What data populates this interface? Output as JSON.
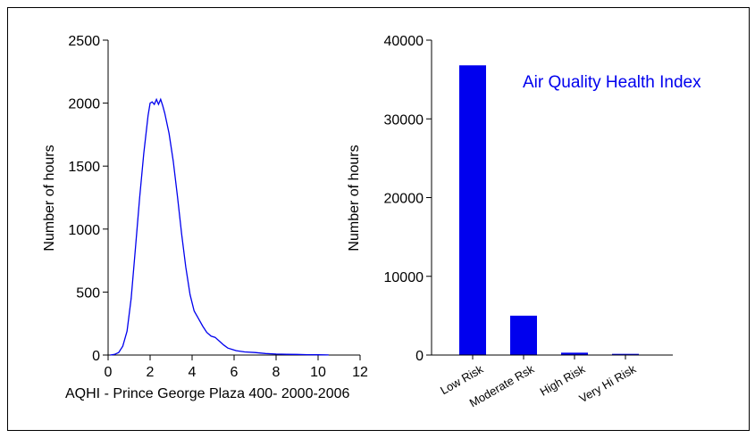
{
  "annotation": "Air Quality Health Index",
  "colors": {
    "series": "#0000ee",
    "axis": "#000000",
    "border": "#000000"
  },
  "chart_data": [
    {
      "type": "line",
      "title": "",
      "xlabel": "AQHI - Prince George Plaza 400- 2000-2006",
      "ylabel": "Number of hours",
      "xlim": [
        0,
        12
      ],
      "ylim": [
        0,
        2500
      ],
      "xticks": [
        0,
        2,
        4,
        6,
        8,
        10,
        12
      ],
      "yticks": [
        0,
        500,
        1000,
        1500,
        2000,
        2500
      ],
      "grid": false,
      "series": [
        {
          "x": [
            0.1,
            0.3,
            0.5,
            0.7,
            0.9,
            1.1,
            1.3,
            1.5,
            1.7,
            1.9,
            2.0,
            2.1,
            2.2,
            2.3,
            2.4,
            2.5,
            2.6,
            2.7,
            2.9,
            3.1,
            3.3,
            3.5,
            3.7,
            3.9,
            4.1,
            4.3,
            4.5,
            4.7,
            4.9,
            5.1,
            5.3,
            5.5,
            5.7,
            5.9,
            6.1,
            6.5,
            7.0,
            7.5,
            8.0,
            8.5,
            9.0,
            9.5,
            10.0,
            10.5
          ],
          "y": [
            0,
            5,
            20,
            70,
            190,
            450,
            850,
            1250,
            1600,
            1900,
            2000,
            2010,
            1990,
            2030,
            1990,
            2030,
            1980,
            1920,
            1760,
            1540,
            1260,
            960,
            700,
            480,
            350,
            290,
            230,
            180,
            150,
            140,
            110,
            80,
            55,
            45,
            35,
            25,
            20,
            12,
            8,
            6,
            5,
            3,
            2,
            1
          ]
        }
      ]
    },
    {
      "type": "bar",
      "title": "",
      "xlabel": "",
      "ylabel": "Number of hours",
      "ylim": [
        0,
        40000
      ],
      "yticks": [
        0,
        10000,
        20000,
        30000,
        40000
      ],
      "grid": false,
      "categories": [
        "Low Risk",
        "Moderate Rsk",
        "High Risk",
        "Very Hi Risk"
      ],
      "values": [
        36800,
        5000,
        300,
        150
      ]
    }
  ]
}
